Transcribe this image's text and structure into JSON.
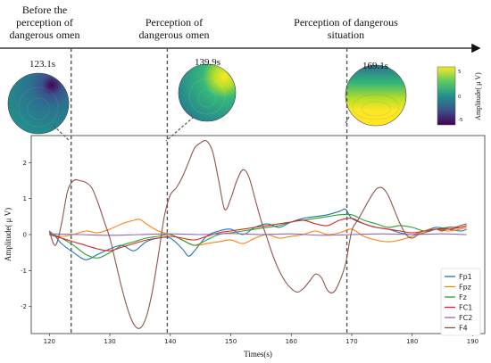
{
  "timeline": {
    "phases": [
      "Before the perception of dangerous omen",
      "Perception of dangerous omen",
      "Perception of dangerous situation"
    ]
  },
  "topomaps": [
    {
      "time_label": "123.1s",
      "time": 123.1,
      "pattern": "dark-top-right"
    },
    {
      "time_label": "139.9s",
      "time": 139.9,
      "pattern": "bright-top-right"
    },
    {
      "time_label": "169.1s",
      "time": 169.1,
      "pattern": "bright-bottom"
    }
  ],
  "colorbar": {
    "label": "Amplitude( μ V)",
    "ticks": [
      "5",
      "0",
      "-5"
    ],
    "colors": [
      "#fde725",
      "#5ec962",
      "#21918c",
      "#3b528b",
      "#440154"
    ]
  },
  "chart_data": {
    "type": "line",
    "xlabel": "Times(s)",
    "ylabel": "Amplitude( μ V)",
    "xlim": [
      117,
      192
    ],
    "ylim": [
      -2.75,
      2.75
    ],
    "xticks": [
      120,
      130,
      140,
      150,
      160,
      170,
      180,
      190
    ],
    "yticks": [
      -2,
      -1,
      0,
      1,
      2
    ],
    "legend_position": "lower-right",
    "vlines": [
      123.6,
      139.5,
      169.2
    ],
    "series": [
      {
        "name": "Fp1",
        "color": "#1f77b4",
        "x": [
          120,
          121,
          122,
          124,
          126,
          128,
          130,
          132,
          134,
          136,
          138,
          140,
          142,
          143,
          144,
          146,
          148,
          150,
          152,
          154,
          156,
          158,
          160,
          162,
          164,
          166,
          168,
          169,
          170,
          172,
          174,
          176,
          178,
          180,
          182,
          184,
          186,
          188,
          189
        ],
        "y": [
          0.1,
          -0.05,
          -0.25,
          -0.5,
          -0.7,
          -0.55,
          -0.4,
          -0.3,
          -0.45,
          -0.2,
          -0.1,
          -0.1,
          -0.4,
          -0.6,
          -0.45,
          -0.05,
          0.1,
          0.15,
          0.0,
          0.2,
          0.3,
          0.2,
          0.35,
          0.45,
          0.5,
          0.55,
          0.65,
          0.7,
          0.45,
          0.3,
          0.2,
          0.15,
          0.05,
          0.0,
          0.1,
          0.2,
          0.15,
          0.1,
          0.15
        ]
      },
      {
        "name": "Fpz",
        "color": "#ff7f0e",
        "x": [
          120,
          122,
          124,
          126,
          128,
          130,
          132,
          134,
          135,
          136,
          138,
          140,
          142,
          144,
          146,
          148,
          150,
          152,
          154,
          156,
          158,
          160,
          162,
          164,
          166,
          168,
          170,
          172,
          174,
          176,
          178,
          180,
          182,
          184,
          186,
          188,
          189
        ],
        "y": [
          0.0,
          -0.05,
          0.0,
          0.1,
          0.05,
          0.15,
          0.3,
          0.4,
          0.42,
          0.3,
          0.1,
          0.0,
          -0.15,
          -0.3,
          -0.25,
          -0.2,
          -0.15,
          -0.25,
          -0.1,
          0.0,
          -0.1,
          -0.05,
          0.0,
          0.1,
          0.0,
          0.05,
          0.15,
          -0.05,
          -0.15,
          -0.2,
          -0.15,
          -0.05,
          0.1,
          0.15,
          0.1,
          0.15,
          0.2
        ]
      },
      {
        "name": "Fz",
        "color": "#2ca02c",
        "x": [
          120,
          122,
          124,
          126,
          128,
          130,
          132,
          134,
          136,
          138,
          140,
          142,
          144,
          146,
          148,
          150,
          152,
          154,
          156,
          158,
          160,
          162,
          164,
          166,
          168,
          170,
          172,
          174,
          176,
          178,
          180,
          182,
          184,
          186,
          188,
          189
        ],
        "y": [
          0.05,
          -0.1,
          -0.3,
          -0.55,
          -0.65,
          -0.5,
          -0.3,
          -0.2,
          -0.1,
          -0.05,
          0.0,
          -0.15,
          -0.3,
          -0.15,
          0.0,
          0.05,
          0.1,
          0.15,
          0.2,
          0.25,
          0.35,
          0.4,
          0.45,
          0.5,
          0.55,
          0.55,
          0.4,
          0.3,
          0.2,
          0.25,
          0.2,
          0.1,
          0.15,
          0.2,
          0.2,
          0.25
        ]
      },
      {
        "name": "FC1",
        "color": "#d62728",
        "x": [
          120,
          122,
          124,
          126,
          128,
          130,
          132,
          134,
          136,
          138,
          140,
          142,
          144,
          146,
          148,
          150,
          152,
          154,
          156,
          158,
          160,
          162,
          164,
          166,
          168,
          170,
          172,
          174,
          176,
          178,
          180,
          182,
          184,
          186,
          188,
          189
        ],
        "y": [
          0.0,
          -0.1,
          -0.2,
          -0.3,
          -0.4,
          -0.45,
          -0.35,
          -0.25,
          -0.15,
          -0.1,
          -0.05,
          -0.1,
          -0.15,
          -0.05,
          0.05,
          0.1,
          0.15,
          0.2,
          0.25,
          0.3,
          0.35,
          0.4,
          0.3,
          0.25,
          0.4,
          0.45,
          0.3,
          0.2,
          0.15,
          0.1,
          0.05,
          0.1,
          0.15,
          0.15,
          0.2,
          0.25
        ]
      },
      {
        "name": "FC2",
        "color": "#9467bd",
        "x": [
          120,
          125,
          130,
          135,
          140,
          145,
          150,
          155,
          160,
          165,
          170,
          175,
          180,
          185,
          189
        ],
        "y": [
          0.02,
          0.0,
          -0.02,
          0.0,
          0.02,
          0.0,
          0.03,
          0.0,
          0.02,
          -0.02,
          0.0,
          0.02,
          0.0,
          0.02,
          0.0
        ]
      },
      {
        "name": "F4",
        "color": "#8c564b",
        "x": [
          120,
          121,
          122,
          123,
          124,
          125,
          126,
          127,
          128,
          129,
          130,
          131,
          132,
          133,
          134,
          135,
          136,
          137,
          138,
          139,
          140,
          141,
          142,
          143,
          144,
          145,
          146,
          147,
          148,
          149,
          150,
          151,
          152,
          153,
          154,
          155,
          156,
          157,
          158,
          159,
          160,
          161,
          162,
          163,
          164,
          165,
          166,
          167,
          168,
          169,
          170,
          171,
          172,
          173,
          174,
          175,
          176,
          177,
          178,
          179,
          180,
          181,
          182,
          183,
          184,
          185,
          186,
          187,
          188,
          189
        ],
        "y": [
          0.1,
          -0.3,
          0.3,
          1.2,
          1.5,
          1.5,
          1.45,
          1.3,
          0.9,
          0.4,
          -0.1,
          -0.8,
          -1.5,
          -2.1,
          -2.5,
          -2.6,
          -2.3,
          -1.6,
          -0.6,
          0.5,
          1.1,
          1.3,
          1.6,
          2.0,
          2.4,
          2.55,
          2.6,
          2.3,
          1.5,
          0.7,
          1.0,
          1.5,
          1.8,
          1.6,
          1.0,
          0.4,
          -0.1,
          -0.6,
          -1.0,
          -1.3,
          -1.5,
          -1.6,
          -1.5,
          -1.3,
          -1.1,
          -1.2,
          -1.55,
          -1.6,
          -1.3,
          -0.8,
          0.1,
          0.4,
          0.7,
          1.0,
          1.25,
          1.3,
          1.1,
          0.7,
          0.3,
          0.0,
          -0.1,
          0.0,
          0.05,
          0.1,
          0.15,
          0.1,
          0.2,
          0.2,
          0.25,
          0.3
        ]
      }
    ]
  }
}
